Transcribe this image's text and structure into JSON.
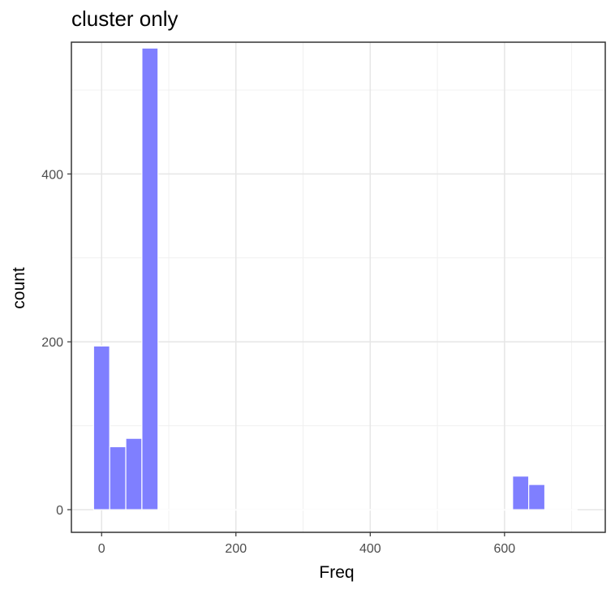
{
  "chart_data": {
    "type": "bar",
    "title": "cluster only",
    "xlabel": "Freq",
    "ylabel": "count",
    "xlim": [
      -45,
      750
    ],
    "ylim": [
      -27,
      557
    ],
    "x_ticks": [
      0,
      200,
      400,
      600
    ],
    "y_ticks": [
      0,
      200,
      400
    ],
    "bin_width": 24,
    "bins": [
      {
        "x": 0,
        "count": 195
      },
      {
        "x": 24,
        "count": 75
      },
      {
        "x": 48,
        "count": 85
      },
      {
        "x": 72,
        "count": 550
      },
      {
        "x": 96,
        "count": 0
      },
      {
        "x": 120,
        "count": 0
      },
      {
        "x": 144,
        "count": 0
      },
      {
        "x": 168,
        "count": 0
      },
      {
        "x": 192,
        "count": 0
      },
      {
        "x": 216,
        "count": 0
      },
      {
        "x": 240,
        "count": 0
      },
      {
        "x": 264,
        "count": 0
      },
      {
        "x": 288,
        "count": 0
      },
      {
        "x": 312,
        "count": 0
      },
      {
        "x": 336,
        "count": 0
      },
      {
        "x": 360,
        "count": 0
      },
      {
        "x": 384,
        "count": 0
      },
      {
        "x": 408,
        "count": 0
      },
      {
        "x": 432,
        "count": 0
      },
      {
        "x": 456,
        "count": 0
      },
      {
        "x": 480,
        "count": 0
      },
      {
        "x": 504,
        "count": 0
      },
      {
        "x": 528,
        "count": 0
      },
      {
        "x": 552,
        "count": 0
      },
      {
        "x": 576,
        "count": 0
      },
      {
        "x": 600,
        "count": 0
      },
      {
        "x": 624,
        "count": 40
      },
      {
        "x": 648,
        "count": 30
      },
      {
        "x": 672,
        "count": 0
      },
      {
        "x": 696,
        "count": 0
      }
    ],
    "bar_color": "#7f7fff",
    "grid": true,
    "legend": "none"
  }
}
